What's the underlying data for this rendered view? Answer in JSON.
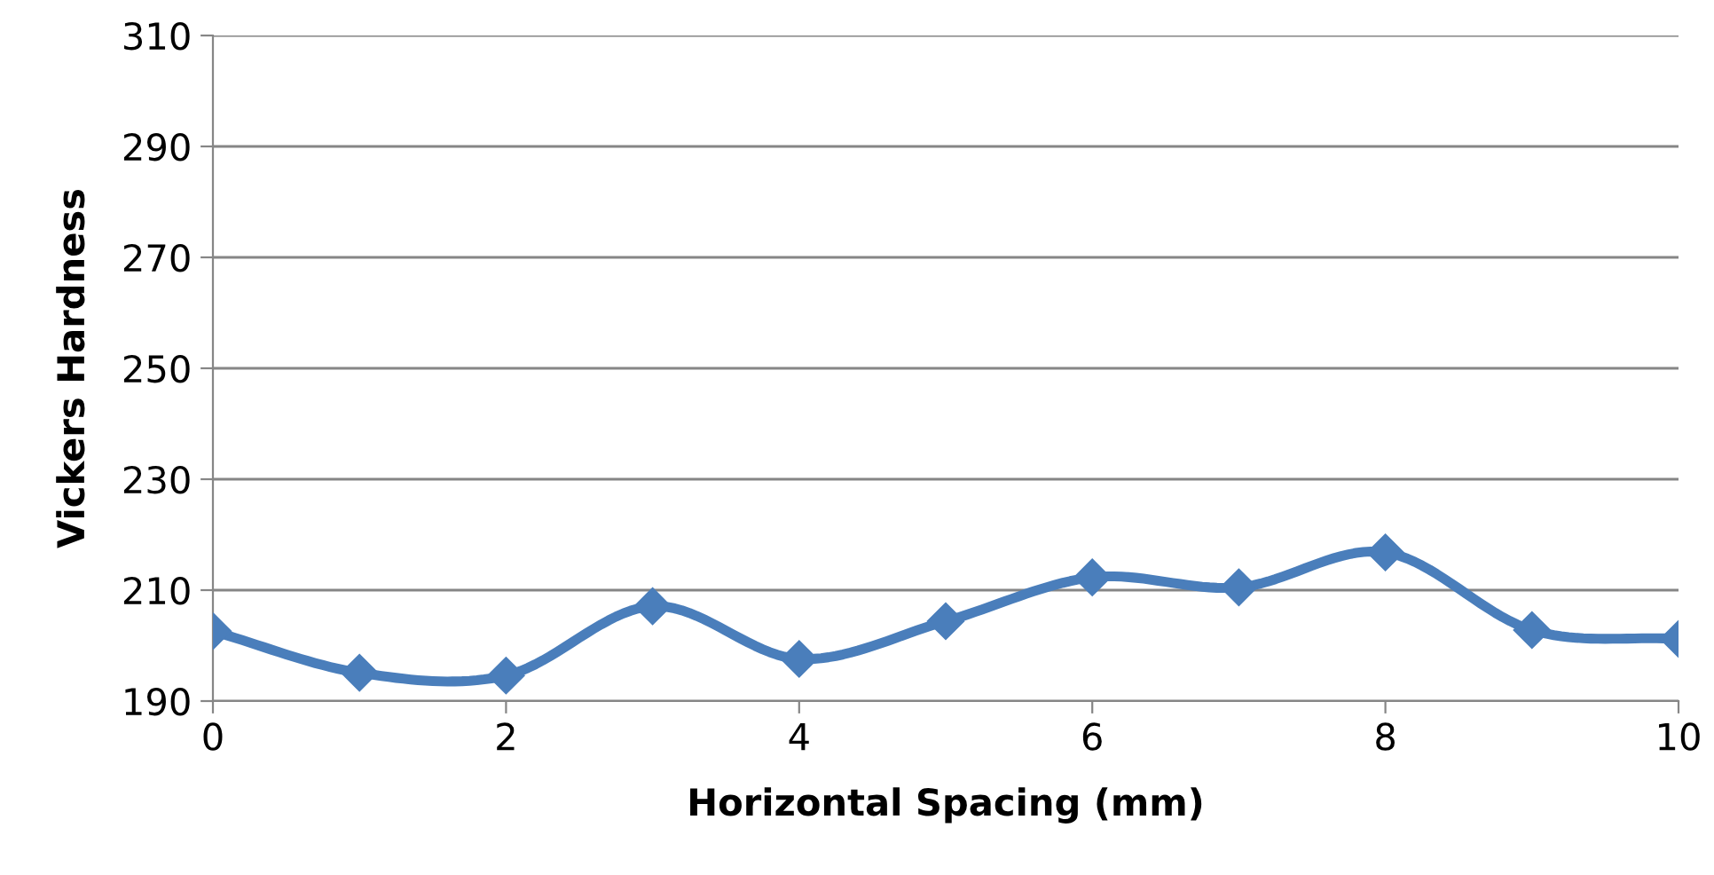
{
  "chart_data": {
    "type": "line",
    "xlabel": "Horizontal Spacing (mm)",
    "ylabel": "Vickers Hardness",
    "x": [
      0,
      1,
      2,
      3,
      4,
      5,
      6,
      7,
      8,
      9,
      10
    ],
    "series": [
      {
        "color": "#4a7ebb",
        "values": [
          202.6,
          195.1,
          194.6,
          207.1,
          197.6,
          204.4,
          212.3,
          210.5,
          216.8,
          202.8,
          201.2
        ]
      }
    ],
    "xlim": [
      0,
      10
    ],
    "xticks": [
      0,
      2,
      4,
      6,
      8,
      10
    ],
    "ylim": [
      190,
      310
    ],
    "yticks": [
      190,
      210,
      230,
      250,
      270,
      290,
      310
    ],
    "grid": "y",
    "marker": "diamond",
    "line_style": "solid"
  }
}
